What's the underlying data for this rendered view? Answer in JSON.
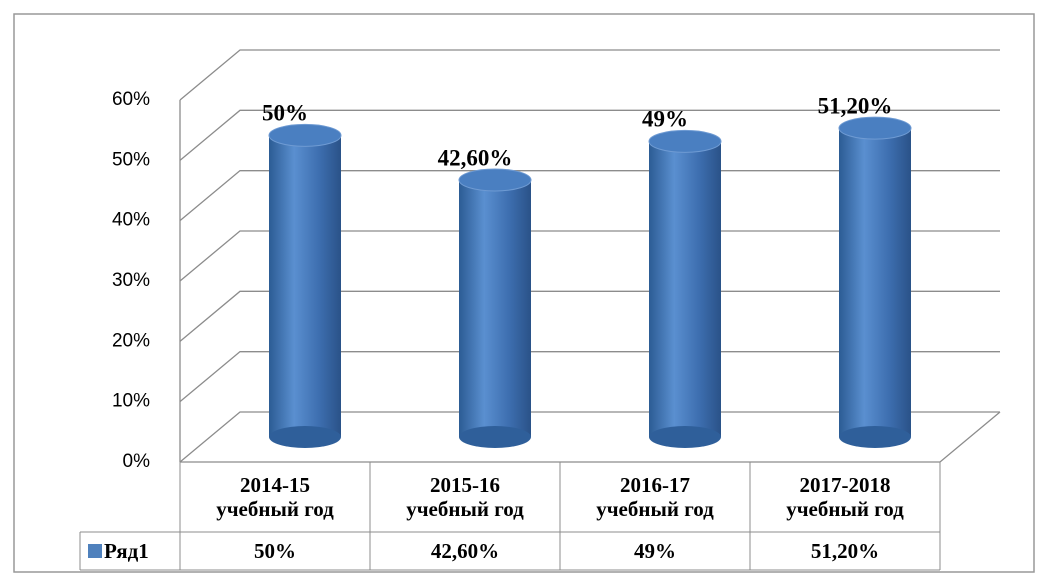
{
  "chart_data": {
    "type": "bar3d",
    "categories": [
      "2014-15 учебный год",
      "2015-16 учебный год",
      "2016-17 учебный год",
      "2017-2018 учебный год"
    ],
    "series": [
      {
        "name": "Ряд1",
        "color": "#4f81bd",
        "values": [
          50,
          42.6,
          49,
          51.2
        ],
        "value_labels": [
          "50%",
          "42,60%",
          "49%",
          "51,20%"
        ]
      }
    ],
    "ylim": [
      0,
      60
    ],
    "yticks": [
      {
        "value": 0,
        "label": "0%"
      },
      {
        "value": 10,
        "label": "10%"
      },
      {
        "value": 20,
        "label": "20%"
      },
      {
        "value": 30,
        "label": "30%"
      },
      {
        "value": 40,
        "label": "40%"
      },
      {
        "value": 50,
        "label": "50%"
      },
      {
        "value": 60,
        "label": "60%"
      }
    ],
    "grid": true
  }
}
